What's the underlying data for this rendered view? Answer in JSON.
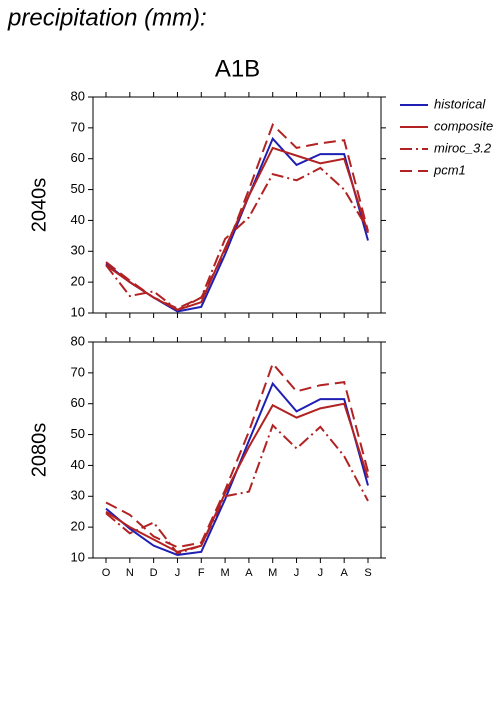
{
  "heading": "precipitation (mm):",
  "chart_data": [
    {
      "type": "line",
      "title": "A1B",
      "ylabel": "2040s",
      "ylim": [
        10,
        80
      ],
      "yticks": [
        10,
        20,
        30,
        40,
        50,
        60,
        70,
        80
      ],
      "legend": "right",
      "series": [
        {
          "name": "historical",
          "color": "#1f1fb4",
          "dash": "solid",
          "values": [
            26,
            20,
            15,
            10.5,
            12,
            29,
            48,
            66.5,
            58,
            61.5,
            61.5,
            33.5
          ]
        },
        {
          "name": "composite",
          "color": "#b22222",
          "dash": "solid",
          "values": [
            25.5,
            20,
            15,
            11,
            13.5,
            31,
            48,
            63.5,
            61,
            58.5,
            60,
            36
          ]
        },
        {
          "name": "miroc_3.2",
          "color": "#b22222",
          "dash": "dashdot",
          "values": [
            25.5,
            15.5,
            17,
            11,
            15,
            34,
            41,
            55,
            53,
            57,
            50,
            37
          ]
        },
        {
          "name": "pcm1",
          "color": "#b22222",
          "dash": "dash",
          "values": [
            26.5,
            20.5,
            15,
            11.5,
            15,
            30,
            50,
            71,
            63.5,
            65,
            66,
            36.5
          ]
        }
      ]
    },
    {
      "type": "line",
      "ylabel": "2080s",
      "categories": [
        "O",
        "N",
        "D",
        "J",
        "F",
        "M",
        "A",
        "M",
        "J",
        "J",
        "A",
        "S"
      ],
      "ylim": [
        10,
        80
      ],
      "yticks": [
        10,
        20,
        30,
        40,
        50,
        60,
        70,
        80
      ],
      "series": [
        {
          "color": "#1f1fb4",
          "dash": "solid",
          "values": [
            26,
            19.5,
            14,
            11,
            12,
            29,
            48,
            66.5,
            57.5,
            61.5,
            61.5,
            33.5
          ]
        },
        {
          "color": "#b22222",
          "dash": "solid",
          "values": [
            25,
            20,
            16,
            12,
            14,
            31,
            46,
            59.5,
            55.5,
            58.5,
            60,
            36
          ]
        },
        {
          "color": "#b22222",
          "dash": "dashdot",
          "values": [
            24.5,
            18,
            21.5,
            11.5,
            14,
            30,
            31.5,
            53,
            45.5,
            52.5,
            43,
            28.5
          ]
        },
        {
          "color": "#b22222",
          "dash": "dash",
          "values": [
            28,
            24,
            17,
            13.5,
            15,
            32,
            51,
            73,
            64,
            66,
            67,
            38
          ]
        }
      ]
    }
  ]
}
